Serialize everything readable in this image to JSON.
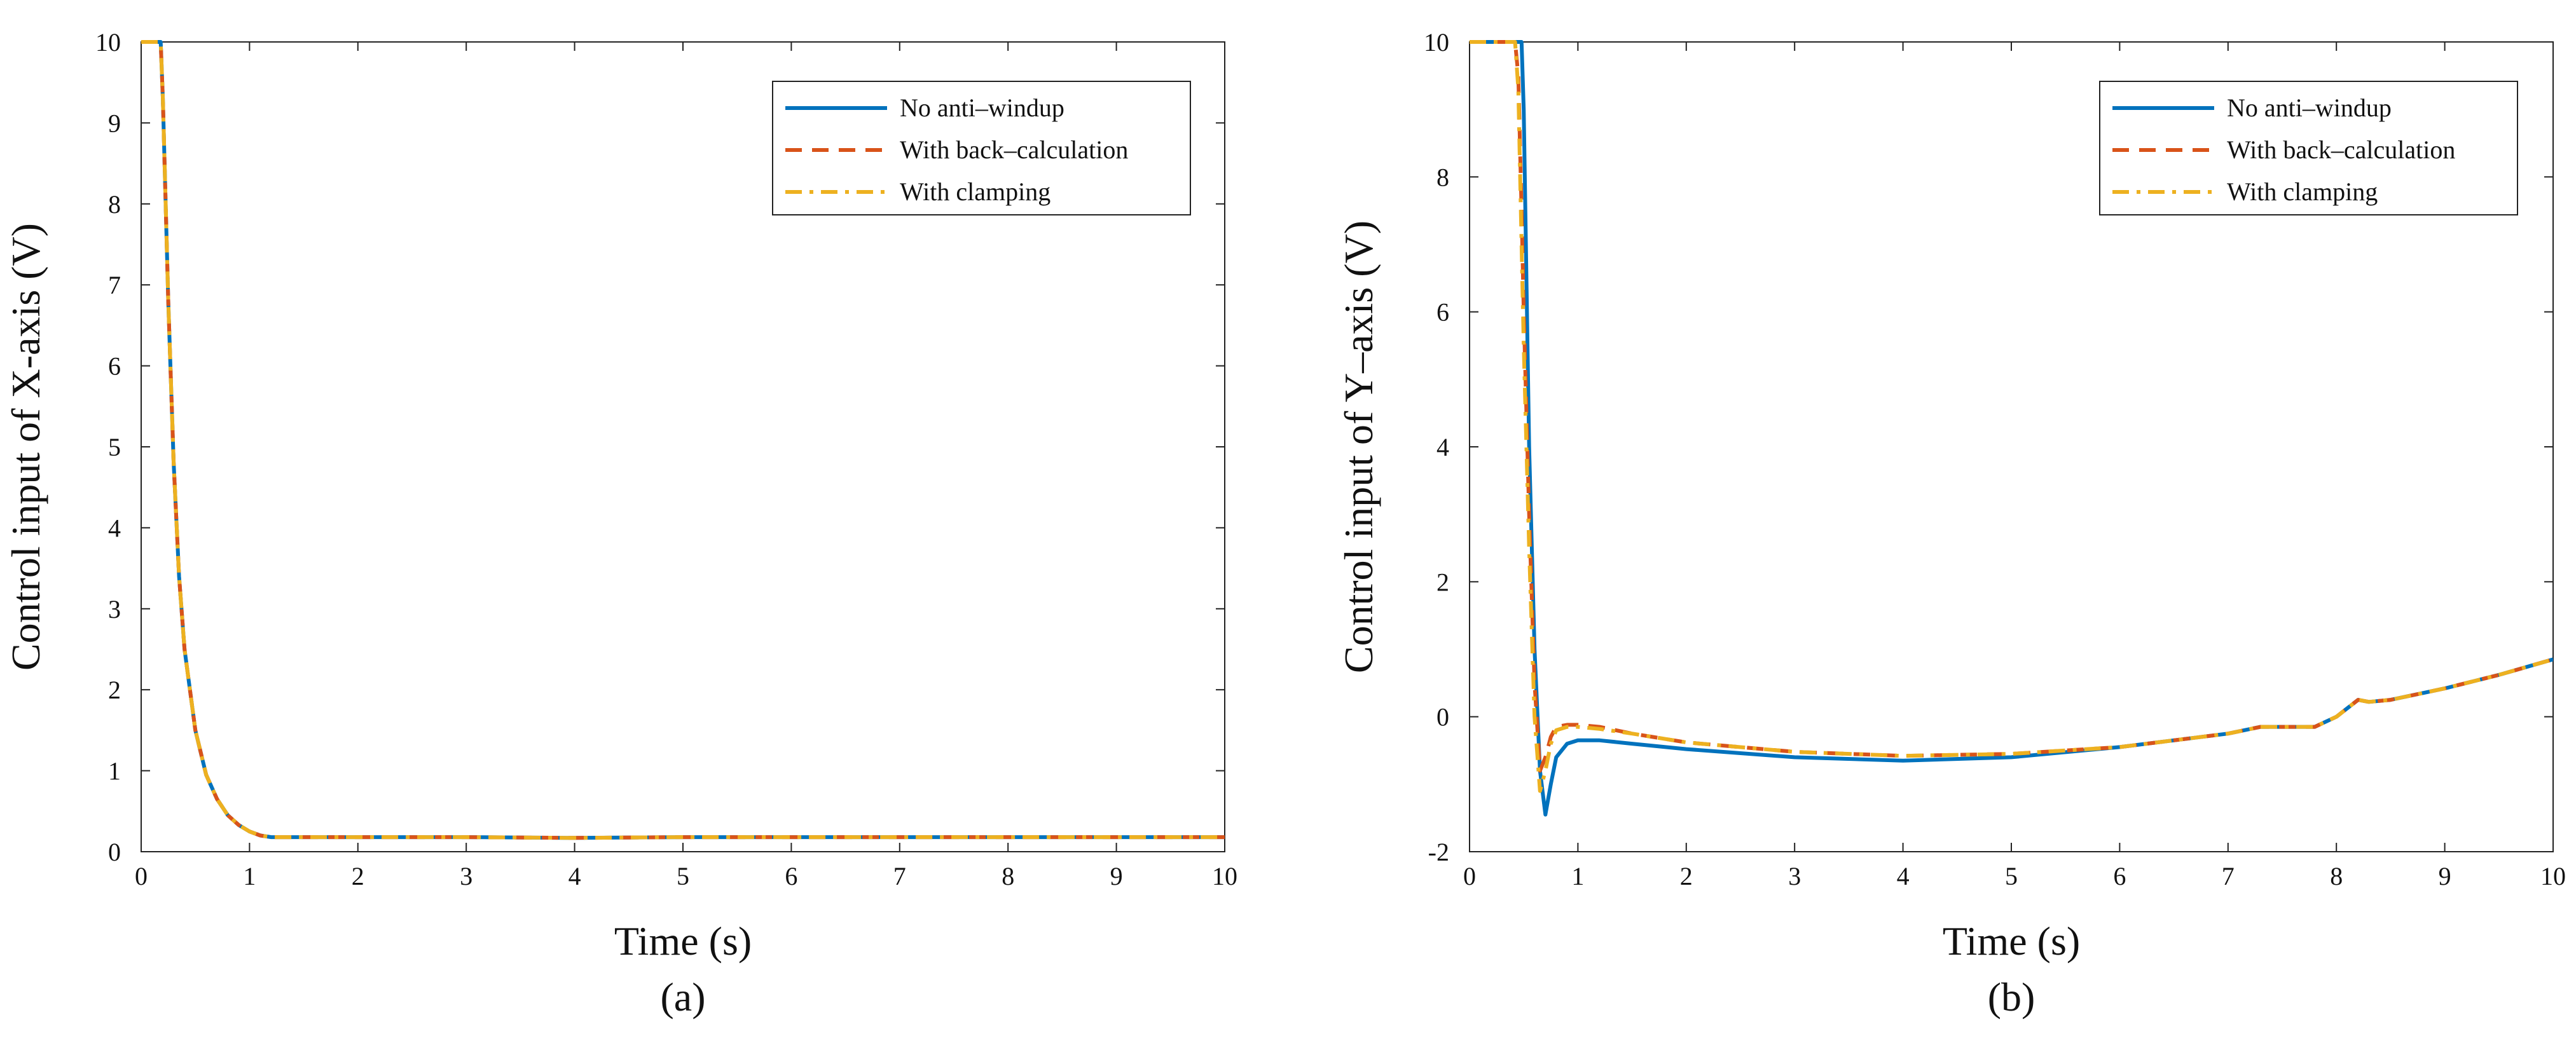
{
  "chart_data": [
    {
      "type": "line",
      "panel_label": "(a)",
      "xlabel": "Time (s)",
      "ylabel": "Control input of X-axis (V)",
      "xlim": [
        0,
        10
      ],
      "ylim": [
        0,
        10
      ],
      "xticks": [
        0,
        1,
        2,
        3,
        4,
        5,
        6,
        7,
        8,
        9,
        10
      ],
      "yticks": [
        0,
        1,
        2,
        3,
        4,
        5,
        6,
        7,
        8,
        9,
        10
      ],
      "legend_position": "top-right",
      "series": [
        {
          "name": "No anti–windup",
          "color": "#0072BD",
          "style": "solid",
          "x": [
            0,
            0.1,
            0.15,
            0.18,
            0.2,
            0.25,
            0.3,
            0.35,
            0.4,
            0.5,
            0.6,
            0.7,
            0.8,
            0.9,
            1.0,
            1.1,
            1.2,
            2,
            3,
            4,
            5,
            6,
            7,
            8,
            9,
            10
          ],
          "y": [
            10,
            10,
            10,
            10,
            9.3,
            6.8,
            4.8,
            3.4,
            2.5,
            1.5,
            0.95,
            0.65,
            0.45,
            0.33,
            0.25,
            0.2,
            0.18,
            0.18,
            0.18,
            0.17,
            0.18,
            0.18,
            0.18,
            0.18,
            0.18,
            0.18
          ]
        },
        {
          "name": "With back–calculation",
          "color": "#D95319",
          "style": "dashed",
          "x": [
            0,
            0.1,
            0.15,
            0.18,
            0.2,
            0.25,
            0.3,
            0.35,
            0.4,
            0.5,
            0.6,
            0.7,
            0.8,
            0.9,
            1.0,
            1.1,
            1.2,
            2,
            3,
            4,
            5,
            6,
            7,
            8,
            9,
            10
          ],
          "y": [
            10,
            10,
            10,
            10,
            9.3,
            6.8,
            4.8,
            3.4,
            2.5,
            1.5,
            0.95,
            0.65,
            0.45,
            0.33,
            0.25,
            0.2,
            0.18,
            0.18,
            0.18,
            0.17,
            0.18,
            0.18,
            0.18,
            0.18,
            0.18,
            0.18
          ]
        },
        {
          "name": "With clamping",
          "color": "#EDB120",
          "style": "dashdot",
          "x": [
            0,
            0.1,
            0.15,
            0.18,
            0.2,
            0.25,
            0.3,
            0.35,
            0.4,
            0.5,
            0.6,
            0.7,
            0.8,
            0.9,
            1.0,
            1.1,
            1.2,
            2,
            3,
            4,
            5,
            6,
            7,
            8,
            9,
            10
          ],
          "y": [
            10,
            10,
            10,
            10,
            9.3,
            6.8,
            4.8,
            3.4,
            2.5,
            1.5,
            0.95,
            0.65,
            0.45,
            0.33,
            0.25,
            0.2,
            0.18,
            0.18,
            0.18,
            0.17,
            0.18,
            0.18,
            0.18,
            0.18,
            0.18,
            0.18
          ]
        }
      ]
    },
    {
      "type": "line",
      "panel_label": "(b)",
      "xlabel": "Time (s)",
      "ylabel": "Control input of Y–axis (V)",
      "xlim": [
        0,
        10
      ],
      "ylim": [
        -2,
        10
      ],
      "xticks": [
        0,
        1,
        2,
        3,
        4,
        5,
        6,
        7,
        8,
        9,
        10
      ],
      "yticks": [
        -2,
        0,
        2,
        4,
        6,
        8,
        10
      ],
      "legend_position": "top-right",
      "series": [
        {
          "name": "No anti–windup",
          "color": "#0072BD",
          "style": "solid",
          "x": [
            0,
            0.45,
            0.48,
            0.5,
            0.52,
            0.55,
            0.6,
            0.65,
            0.7,
            0.75,
            0.8,
            0.9,
            1.0,
            1.2,
            1.5,
            2,
            3,
            4,
            5,
            6,
            7,
            7.3,
            7.6,
            7.8,
            8,
            8.2,
            8.3,
            8.5,
            9,
            9.5,
            10
          ],
          "y": [
            10,
            10,
            10,
            9.0,
            7.0,
            4.0,
            1.0,
            -0.8,
            -1.45,
            -1.0,
            -0.6,
            -0.4,
            -0.35,
            -0.35,
            -0.4,
            -0.48,
            -0.6,
            -0.65,
            -0.6,
            -0.45,
            -0.25,
            -0.15,
            -0.15,
            -0.15,
            0.0,
            0.25,
            0.22,
            0.25,
            0.42,
            0.62,
            0.85
          ]
        },
        {
          "name": "With back–calculation",
          "color": "#D95319",
          "style": "dashed",
          "x": [
            0,
            0.42,
            0.45,
            0.48,
            0.5,
            0.55,
            0.6,
            0.65,
            0.7,
            0.75,
            0.8,
            0.9,
            1.0,
            1.2,
            1.5,
            2,
            3,
            4,
            5,
            6,
            7,
            7.3,
            7.6,
            7.8,
            8,
            8.2,
            8.3,
            8.5,
            9,
            9.5,
            10
          ],
          "y": [
            10,
            10,
            9.5,
            7.5,
            6.0,
            3.0,
            0.5,
            -0.8,
            -0.6,
            -0.3,
            -0.15,
            -0.12,
            -0.12,
            -0.15,
            -0.25,
            -0.38,
            -0.52,
            -0.58,
            -0.55,
            -0.45,
            -0.25,
            -0.15,
            -0.15,
            -0.15,
            0.0,
            0.25,
            0.22,
            0.25,
            0.42,
            0.62,
            0.85
          ]
        },
        {
          "name": "With clamping",
          "color": "#EDB120",
          "style": "dashdot",
          "x": [
            0,
            0.42,
            0.45,
            0.48,
            0.5,
            0.55,
            0.6,
            0.65,
            0.7,
            0.75,
            0.8,
            0.9,
            1.0,
            1.2,
            1.5,
            2,
            3,
            4,
            5,
            6,
            7,
            7.3,
            7.6,
            7.8,
            8,
            8.2,
            8.3,
            8.5,
            9,
            9.5,
            10
          ],
          "y": [
            10,
            10,
            9.3,
            7.0,
            5.5,
            2.5,
            0.0,
            -1.1,
            -0.8,
            -0.4,
            -0.2,
            -0.15,
            -0.15,
            -0.18,
            -0.25,
            -0.38,
            -0.52,
            -0.58,
            -0.55,
            -0.45,
            -0.25,
            -0.15,
            -0.15,
            -0.15,
            0.0,
            0.25,
            0.22,
            0.25,
            0.42,
            0.62,
            0.85
          ]
        }
      ]
    }
  ]
}
